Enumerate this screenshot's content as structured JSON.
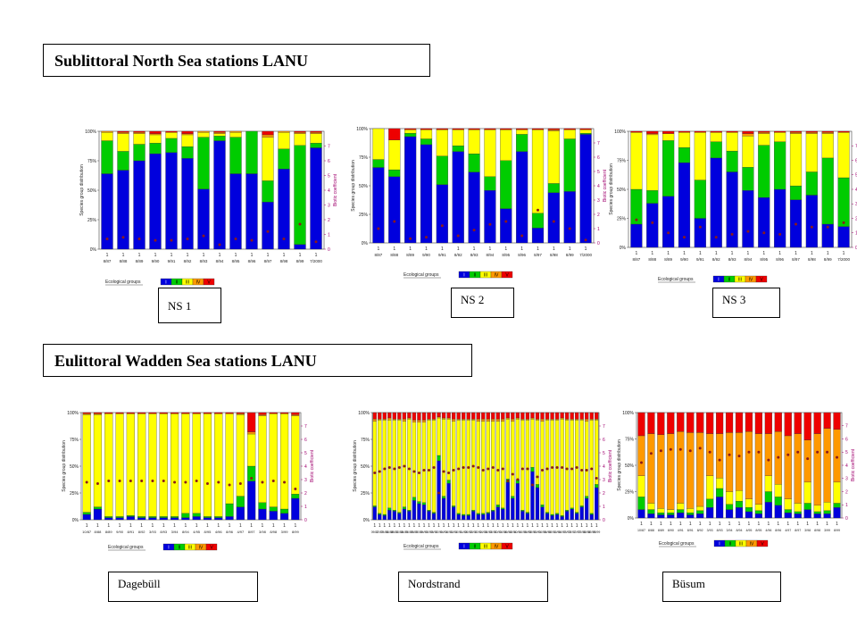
{
  "sections": {
    "sublittoral_title": "Sublittoral North Sea stations LANU",
    "eulittoral_title": "Eulittoral Wadden Sea stations LANU"
  },
  "legend": {
    "label": "Ecological groups",
    "groups": [
      "I",
      "II",
      "III",
      "IV",
      "V"
    ],
    "colors": [
      "#0000dd",
      "#00cc00",
      "#ffff00",
      "#ff9900",
      "#ee0000"
    ]
  },
  "axis": {
    "y_label": "Species group distribution",
    "y2_label": "Biotic coefficient",
    "y_ticks": [
      "0%",
      "25%",
      "50%",
      "75%",
      "100%"
    ],
    "y2_ticks": [
      "0",
      "1",
      "2",
      "3",
      "4",
      "5",
      "6",
      "7"
    ],
    "point_color": "#8b1a1a"
  },
  "chart_data": [
    {
      "type": "bar",
      "station": "NS 1",
      "stacked": true,
      "ylim": [
        0,
        100
      ],
      "y2lim": [
        0,
        8
      ],
      "categories": [
        "8/87",
        "8/88",
        "8/89",
        "9/90",
        "9/91",
        "8/92",
        "8/93",
        "8/94",
        "8/95",
        "8/96",
        "8/97",
        "8/98",
        "8/99",
        "7/2000"
      ],
      "series": [
        {
          "name": "I",
          "values": [
            64,
            67,
            75,
            81,
            82,
            77,
            51,
            92,
            64,
            64,
            40,
            68,
            4,
            86
          ]
        },
        {
          "name": "II",
          "values": [
            28,
            16,
            14,
            9,
            12,
            10,
            44,
            4,
            31,
            36,
            18,
            17,
            84,
            4
          ]
        },
        {
          "name": "III",
          "values": [
            7,
            15,
            9,
            7,
            5,
            10,
            4,
            2,
            4,
            0,
            37,
            14,
            10,
            8
          ]
        },
        {
          "name": "IV",
          "values": [
            1,
            1,
            1,
            1,
            0,
            1,
            1,
            1,
            1,
            0,
            2,
            1,
            1,
            1
          ]
        },
        {
          "name": "V",
          "values": [
            0,
            1,
            1,
            2,
            1,
            2,
            0,
            1,
            0,
            0,
            3,
            0,
            1,
            1
          ]
        }
      ],
      "biotic": [
        0.7,
        0.8,
        0.7,
        0.6,
        0.6,
        0.7,
        0.9,
        0.3,
        0.7,
        0.6,
        1.2,
        0.7,
        1.7,
        0.5
      ]
    },
    {
      "type": "bar",
      "station": "NS 2",
      "stacked": true,
      "ylim": [
        0,
        100
      ],
      "y2lim": [
        0,
        8
      ],
      "categories": [
        "8/87",
        "8/88",
        "8/89",
        "9/90",
        "9/91",
        "8/92",
        "8/93",
        "8/94",
        "8/95",
        "8/96",
        "8/97",
        "8/98",
        "8/99",
        "7/2000"
      ],
      "series": [
        {
          "name": "I",
          "values": [
            66,
            58,
            93,
            86,
            51,
            80,
            62,
            46,
            30,
            80,
            13,
            44,
            45,
            95
          ]
        },
        {
          "name": "II",
          "values": [
            7,
            6,
            3,
            5,
            25,
            5,
            16,
            12,
            42,
            15,
            13,
            8,
            46,
            1
          ]
        },
        {
          "name": "III",
          "values": [
            27,
            26,
            3,
            8,
            23,
            14,
            21,
            41,
            27,
            4,
            73,
            46,
            8,
            3
          ]
        },
        {
          "name": "IV",
          "values": [
            0,
            0,
            0,
            0,
            0,
            0,
            0,
            0,
            0,
            0,
            0,
            1,
            0,
            0
          ]
        },
        {
          "name": "V",
          "values": [
            0,
            10,
            1,
            1,
            1,
            1,
            1,
            1,
            1,
            1,
            1,
            1,
            1,
            1
          ]
        }
      ],
      "biotic": [
        1.0,
        1.5,
        0.3,
        0.4,
        1.2,
        0.5,
        0.9,
        1.3,
        1.5,
        0.5,
        2.3,
        1.5,
        1.0,
        0.2
      ]
    },
    {
      "type": "bar",
      "station": "NS 3",
      "stacked": true,
      "ylim": [
        0,
        100
      ],
      "y2lim": [
        0,
        8
      ],
      "categories": [
        "8/87",
        "8/88",
        "8/89",
        "9/90",
        "9/91",
        "8/92",
        "8/93",
        "8/94",
        "8/95",
        "8/96",
        "8/97",
        "8/98",
        "8/99",
        "7/2000"
      ],
      "series": [
        {
          "name": "I",
          "values": [
            20,
            38,
            44,
            73,
            25,
            77,
            65,
            49,
            43,
            50,
            41,
            45,
            20,
            18
          ]
        },
        {
          "name": "II",
          "values": [
            30,
            11,
            48,
            13,
            33,
            14,
            18,
            20,
            45,
            41,
            12,
            20,
            57,
            42
          ]
        },
        {
          "name": "III",
          "values": [
            49,
            48,
            6,
            13,
            41,
            8,
            16,
            27,
            10,
            8,
            45,
            33,
            21,
            39
          ]
        },
        {
          "name": "IV",
          "values": [
            0,
            1,
            0,
            0,
            0,
            0,
            0,
            2,
            1,
            0,
            1,
            1,
            1,
            0
          ]
        },
        {
          "name": "V",
          "values": [
            1,
            2,
            2,
            1,
            1,
            1,
            1,
            2,
            1,
            1,
            1,
            1,
            1,
            1
          ]
        }
      ],
      "biotic": [
        1.9,
        1.7,
        1.0,
        0.7,
        1.4,
        0.7,
        0.9,
        1.1,
        1.0,
        0.9,
        1.6,
        1.4,
        1.4,
        1.7
      ]
    },
    {
      "type": "bar",
      "station": "Dagebüll",
      "stacked": true,
      "ylim": [
        0,
        100
      ],
      "y2lim": [
        0,
        8
      ],
      "categories": [
        "10/87",
        "8/88",
        "8/89",
        "9/90",
        "8/91",
        "8/92",
        "3/93",
        "8/93",
        "3/94",
        "8/94",
        "4/95",
        "8/95",
        "4/96",
        "8/96",
        "4/97",
        "8/97",
        "3/98",
        "8/98",
        "3/99",
        "8/99"
      ],
      "series": [
        {
          "name": "I",
          "values": [
            5,
            10,
            2,
            2,
            3,
            2,
            2,
            2,
            2,
            2,
            3,
            2,
            2,
            3,
            12,
            36,
            10,
            8,
            6,
            20
          ]
        },
        {
          "name": "II",
          "values": [
            2,
            2,
            1,
            1,
            1,
            1,
            1,
            1,
            1,
            4,
            3,
            1,
            1,
            12,
            10,
            14,
            6,
            4,
            4,
            4
          ]
        },
        {
          "name": "III",
          "values": [
            91,
            86,
            96,
            96,
            95,
            96,
            96,
            96,
            96,
            93,
            93,
            96,
            96,
            84,
            76,
            30,
            81,
            87,
            89,
            73
          ]
        },
        {
          "name": "IV",
          "values": [
            1,
            1,
            0,
            0,
            0,
            0,
            0,
            0,
            0,
            0,
            0,
            0,
            0,
            0,
            1,
            2,
            1,
            0,
            0,
            1
          ]
        },
        {
          "name": "V",
          "values": [
            1,
            1,
            1,
            1,
            1,
            1,
            1,
            1,
            1,
            1,
            1,
            1,
            1,
            1,
            1,
            18,
            2,
            1,
            1,
            2
          ]
        }
      ],
      "biotic": [
        2.8,
        2.7,
        2.9,
        2.9,
        2.9,
        2.9,
        2.9,
        2.9,
        2.8,
        2.8,
        2.9,
        2.7,
        2.8,
        2.6,
        2.7,
        3.1,
        2.8,
        2.9,
        2.8,
        2.3
      ]
    },
    {
      "type": "bar",
      "station": "Nordstrand",
      "stacked": true,
      "ylim": [
        0,
        100
      ],
      "y2lim": [
        0,
        8
      ],
      "categories": [
        "09/87",
        "10/87",
        "04/88",
        "06/88",
        "08/88",
        "10/88",
        "04/89",
        "06/89",
        "08/89",
        "10/89",
        "04/90",
        "06/90",
        "08/90",
        "10/90",
        "04/91",
        "06/91",
        "08/91",
        "10/91",
        "04/92",
        "06/92",
        "08/92",
        "10/92",
        "04/93",
        "06/93",
        "08/93",
        "10/93",
        "04/94",
        "06/94",
        "08/94",
        "10/94",
        "04/95",
        "06/95",
        "08/95",
        "10/95",
        "04/96",
        "06/96",
        "08/96",
        "10/96",
        "04/97",
        "06/97",
        "08/97",
        "10/97",
        "03/98",
        "08/98",
        "03/99",
        "08/99"
      ],
      "series": [
        {
          "name": "I",
          "values": [
            12,
            5,
            4,
            9,
            8,
            6,
            10,
            8,
            18,
            15,
            14,
            8,
            6,
            55,
            20,
            34,
            12,
            5,
            4,
            4,
            8,
            5,
            5,
            6,
            8,
            12,
            10,
            35,
            20,
            34,
            8,
            6,
            45,
            30,
            12,
            6,
            4,
            5,
            3,
            8,
            10,
            6,
            12,
            20,
            5,
            30
          ]
        },
        {
          "name": "II",
          "values": [
            1,
            1,
            1,
            2,
            1,
            1,
            2,
            1,
            3,
            2,
            2,
            1,
            1,
            5,
            2,
            3,
            1,
            1,
            1,
            1,
            1,
            1,
            1,
            1,
            1,
            2,
            1,
            3,
            2,
            3,
            1,
            1,
            4,
            3,
            2,
            1,
            1,
            1,
            1,
            1,
            1,
            1,
            1,
            2,
            1,
            3
          ]
        },
        {
          "name": "III",
          "values": [
            79,
            87,
            88,
            82,
            84,
            86,
            80,
            85,
            70,
            74,
            75,
            84,
            86,
            35,
            72,
            57,
            79,
            87,
            88,
            88,
            84,
            86,
            86,
            85,
            83,
            78,
            81,
            56,
            70,
            57,
            84,
            86,
            45,
            60,
            78,
            86,
            88,
            87,
            90,
            84,
            82,
            86,
            80,
            70,
            87,
            60
          ]
        },
        {
          "name": "IV",
          "values": [
            2,
            1,
            1,
            2,
            1,
            1,
            2,
            1,
            2,
            2,
            2,
            1,
            1,
            1,
            1,
            1,
            2,
            1,
            1,
            1,
            1,
            2,
            2,
            2,
            2,
            2,
            2,
            1,
            2,
            1,
            1,
            1,
            1,
            1,
            2,
            1,
            1,
            1,
            1,
            1,
            1,
            1,
            1,
            2,
            1,
            1
          ]
        },
        {
          "name": "V",
          "values": [
            6,
            6,
            6,
            5,
            6,
            6,
            6,
            5,
            7,
            7,
            7,
            6,
            6,
            4,
            5,
            5,
            6,
            6,
            6,
            6,
            6,
            6,
            6,
            6,
            6,
            6,
            6,
            5,
            6,
            5,
            6,
            6,
            5,
            6,
            6,
            6,
            6,
            6,
            5,
            6,
            6,
            6,
            6,
            6,
            6,
            6
          ]
        }
      ],
      "biotic": [
        3.5,
        3.6,
        3.8,
        3.9,
        3.8,
        3.9,
        4.0,
        3.8,
        3.6,
        3.5,
        3.7,
        3.7,
        3.9,
        2.0,
        3.6,
        3.5,
        3.7,
        3.8,
        3.9,
        3.9,
        4.0,
        3.9,
        3.7,
        3.8,
        3.9,
        3.7,
        3.8,
        2.9,
        3.4,
        3.0,
        3.8,
        3.8,
        2.6,
        3.2,
        3.7,
        3.8,
        3.9,
        3.9,
        3.9,
        3.8,
        3.8,
        3.9,
        3.7,
        3.7,
        3.8,
        3.1
      ]
    },
    {
      "type": "bar",
      "station": "Büsum",
      "stacked": true,
      "ylim": [
        0,
        100
      ],
      "y2lim": [
        0,
        8
      ],
      "categories": [
        "10/87",
        "8/88",
        "8/89",
        "8/90",
        "4/91",
        "8/91",
        "8/92",
        "3/93",
        "8/93",
        "3/94",
        "8/94",
        "4/95",
        "8/95",
        "4/96",
        "8/96",
        "4/97",
        "8/97",
        "3/98",
        "8/98",
        "3/99",
        "8/99"
      ],
      "series": [
        {
          "name": "I",
          "values": [
            8,
            4,
            3,
            3,
            5,
            3,
            4,
            10,
            20,
            8,
            10,
            6,
            4,
            15,
            12,
            5,
            4,
            8,
            4,
            4,
            10
          ]
        },
        {
          "name": "II",
          "values": [
            12,
            4,
            2,
            2,
            3,
            2,
            3,
            8,
            8,
            5,
            6,
            4,
            3,
            10,
            8,
            3,
            2,
            6,
            2,
            3,
            4
          ]
        },
        {
          "name": "III",
          "values": [
            20,
            6,
            4,
            3,
            6,
            4,
            4,
            22,
            10,
            12,
            10,
            8,
            6,
            15,
            12,
            10,
            8,
            20,
            6,
            8,
            20
          ]
        },
        {
          "name": "IV",
          "values": [
            38,
            66,
            70,
            72,
            68,
            72,
            70,
            40,
            42,
            56,
            55,
            64,
            67,
            40,
            50,
            60,
            66,
            40,
            68,
            70,
            50
          ]
        },
        {
          "name": "V",
          "values": [
            22,
            20,
            21,
            20,
            18,
            19,
            19,
            20,
            20,
            19,
            19,
            18,
            20,
            20,
            18,
            22,
            20,
            26,
            20,
            15,
            16
          ]
        }
      ],
      "biotic": [
        4.2,
        4.9,
        5.1,
        5.2,
        5.2,
        5.1,
        5.3,
        5.0,
        4.4,
        4.8,
        4.7,
        5.0,
        5.0,
        4.4,
        4.6,
        4.8,
        5.0,
        4.5,
        5.0,
        5.0,
        4.6
      ]
    }
  ]
}
